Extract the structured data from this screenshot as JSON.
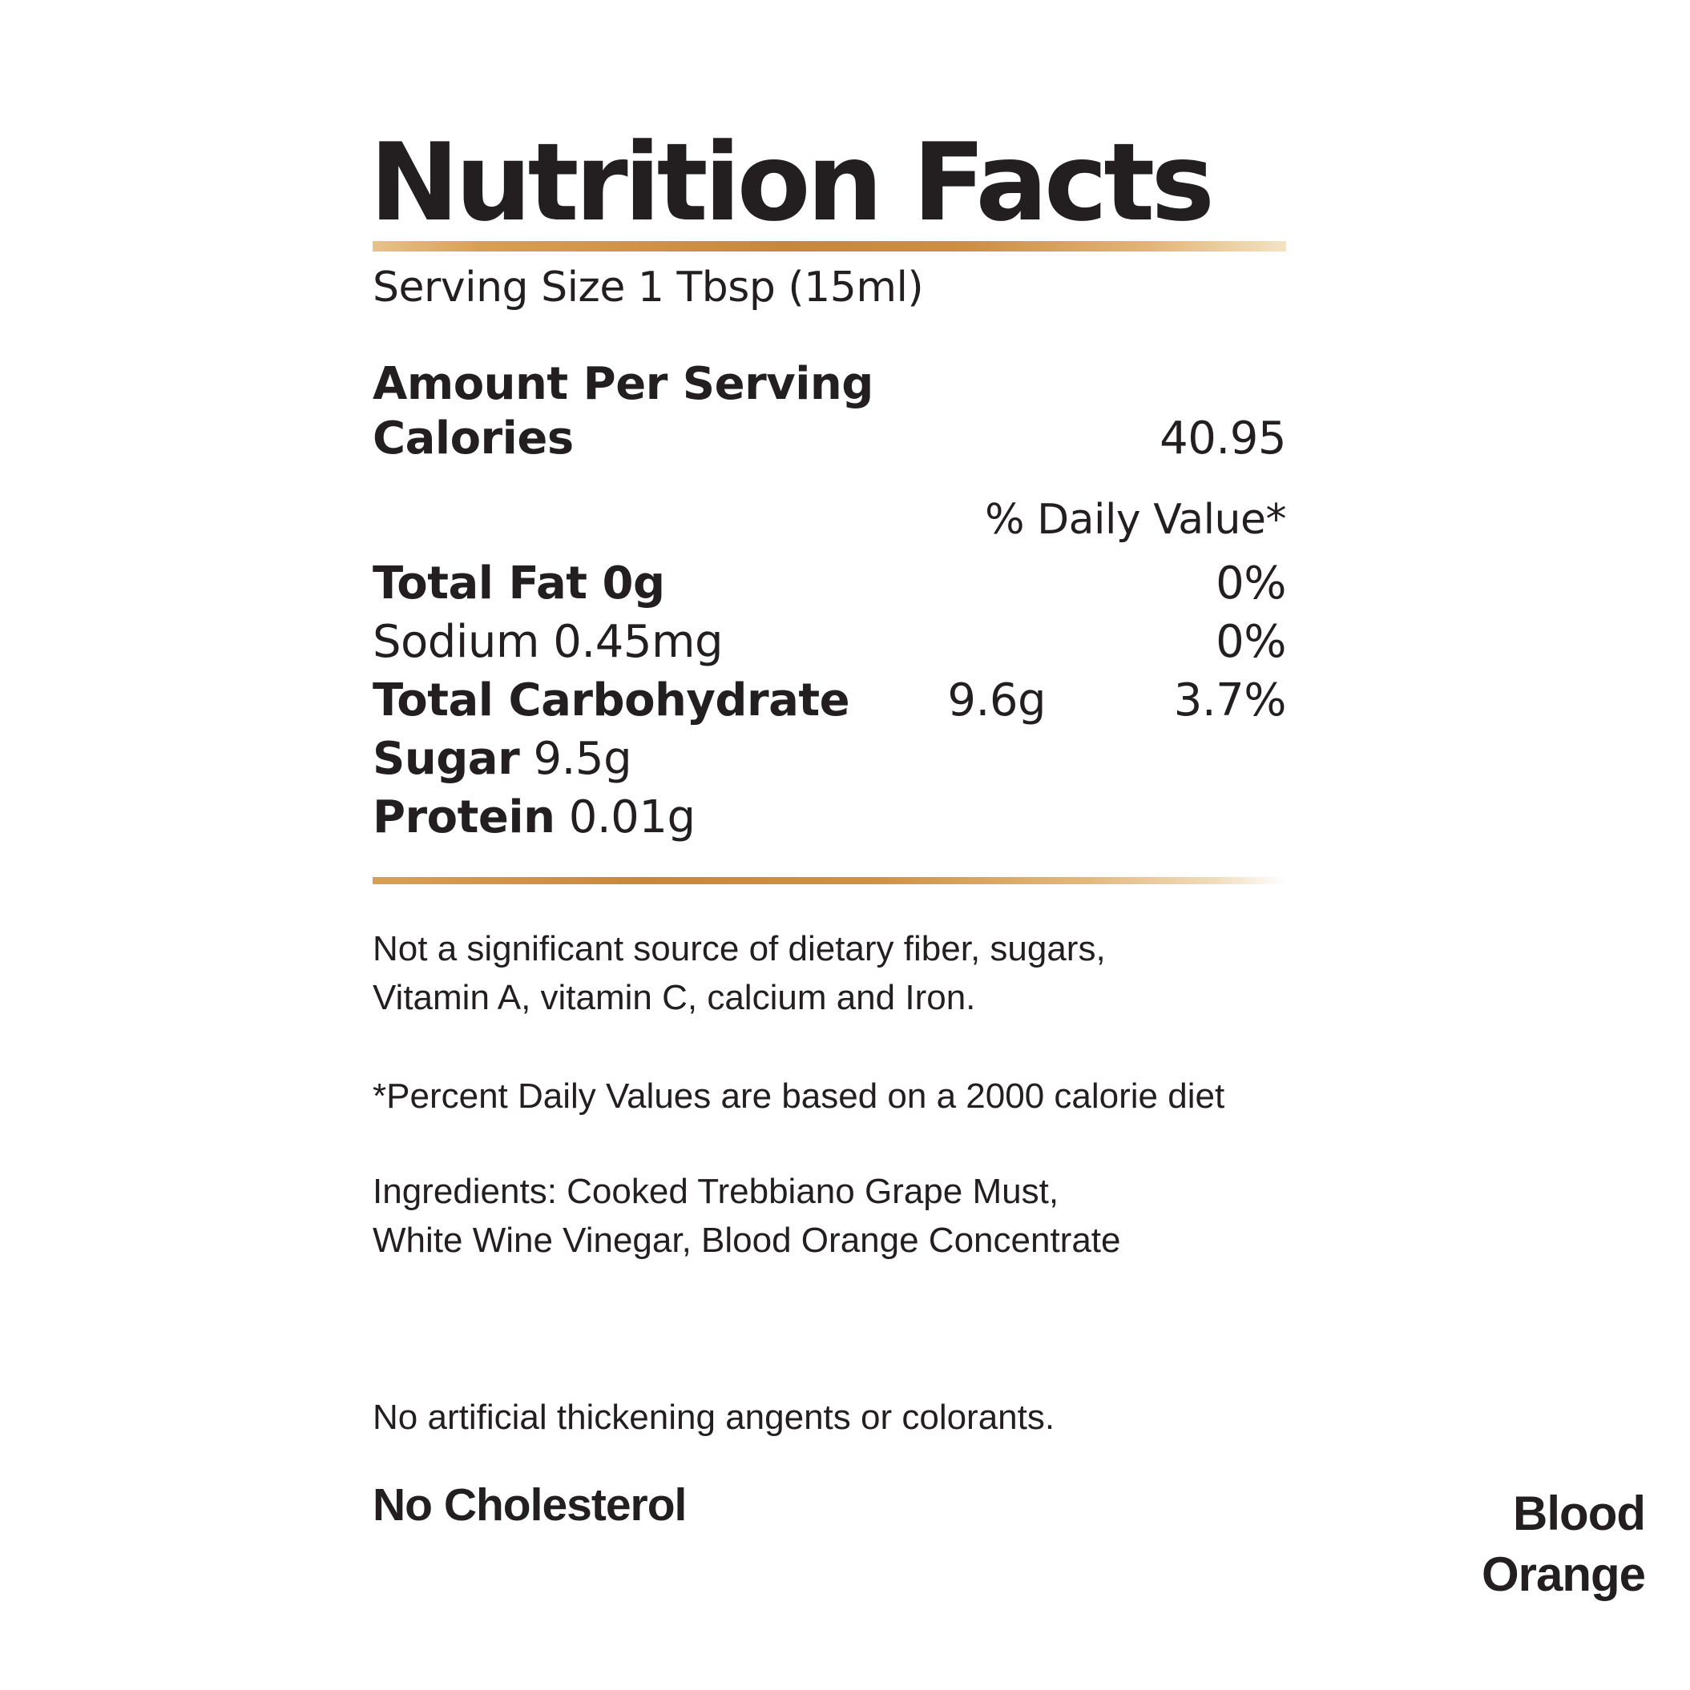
{
  "page": {
    "background": "#ffffff",
    "text_color": "#231f20",
    "accent_gold": "#cf9344"
  },
  "label": {
    "title": "Nutrition Facts",
    "serving_size": "Serving Size 1 Tbsp (15ml)",
    "amount_per_serving": "Amount Per Serving",
    "calories": {
      "label": "Calories",
      "value": "40.95"
    },
    "daily_value_header": "% Daily Value*",
    "rows": [
      {
        "bold": "Total Fat 0g",
        "regular": "",
        "amount": "",
        "percent": "0%"
      },
      {
        "bold": "",
        "regular": "Sodium 0.45mg",
        "amount": "",
        "percent": "0%"
      },
      {
        "bold": "Total Carbohydrate",
        "regular": "",
        "amount": "9.6g",
        "percent": "3.7%"
      },
      {
        "bold": "Sugar",
        "regular": " 9.5g",
        "amount": "",
        "percent": ""
      },
      {
        "bold": "Protein",
        "regular": " 0.01g",
        "amount": "",
        "percent": ""
      }
    ],
    "footnotes": {
      "not_significant": "Not a significant source of dietary fiber, sugars,\nVitamin A, vitamin C, calcium and Iron.",
      "percent_note": "*Percent Daily Values are based on a 2000 calorie diet",
      "ingredients": "Ingredients: Cooked Trebbiano Grape Must,\nWhite Wine Vinegar, Blood Orange Concentrate",
      "no_artificial": "No artificial thickening angents or colorants.",
      "no_cholesterol": "No Cholesterol"
    },
    "flavor": "Blood\nOrange"
  }
}
